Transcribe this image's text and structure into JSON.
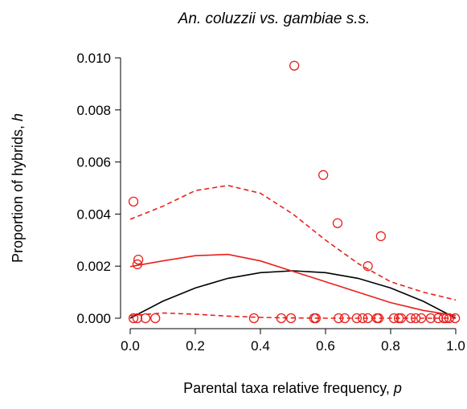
{
  "chart_data": {
    "type": "scatter",
    "title": "An. coluzzii vs. gambiae s.s.",
    "x_label": {
      "text": "Parental taxa relative frequency, ",
      "var": "p"
    },
    "y_label": {
      "text": "Proportion of hybrids, ",
      "var": "h"
    },
    "xlim": [
      0,
      1
    ],
    "ylim": [
      0,
      0.01
    ],
    "xticks": [
      {
        "value": 0,
        "label": "0.0"
      },
      {
        "value": 0.2,
        "label": "0.2"
      },
      {
        "value": 0.4,
        "label": "0.4"
      },
      {
        "value": 0.6,
        "label": "0.6"
      },
      {
        "value": 0.8,
        "label": "0.8"
      },
      {
        "value": 1,
        "label": "1.0"
      }
    ],
    "yticks": [
      {
        "value": 0,
        "label": "0.000"
      },
      {
        "value": 0.002,
        "label": "0.002"
      },
      {
        "value": 0.004,
        "label": "0.004"
      },
      {
        "value": 0.006,
        "label": "0.006"
      },
      {
        "value": 0.008,
        "label": "0.008"
      },
      {
        "value": 0.01,
        "label": "0.010"
      }
    ],
    "points": {
      "color": "#e8201c",
      "x": [
        0.01,
        0.022,
        0.025,
        0.504,
        0.593,
        0.637,
        0.77,
        0.73,
        0.01,
        0.022,
        0.047,
        0.077,
        0.38,
        0.464,
        0.494,
        0.565,
        0.57,
        0.64,
        0.659,
        0.696,
        0.714,
        0.73,
        0.758,
        0.763,
        0.81,
        0.825,
        0.832,
        0.862,
        0.877,
        0.894,
        0.923,
        0.946,
        0.963,
        0.971,
        0.98,
        0.998
      ],
      "y": [
        0.00448,
        0.00207,
        0.00225,
        0.0097,
        0.0055,
        0.00365,
        0.00315,
        0.002,
        0,
        0,
        0,
        0,
        0,
        0,
        0,
        0,
        0,
        0,
        0,
        0,
        0,
        0,
        0,
        0,
        0,
        0,
        0,
        0,
        0,
        0,
        0,
        0,
        0,
        0,
        0,
        0
      ]
    },
    "lines": [
      {
        "color": "#000000",
        "dash": false,
        "x": [
          0,
          0.1,
          0.2,
          0.3,
          0.4,
          0.5,
          0.6,
          0.7,
          0.8,
          0.9,
          1
        ],
        "y": [
          0,
          0.00065,
          0.00116,
          0.00153,
          0.00175,
          0.00182,
          0.00175,
          0.00153,
          0.00116,
          0.00065,
          0
        ]
      },
      {
        "color": "#e8201c",
        "dash": false,
        "x": [
          0,
          0.1,
          0.2,
          0.3,
          0.4,
          0.5,
          0.6,
          0.7,
          0.8,
          0.9,
          1
        ],
        "y": [
          0.00198,
          0.0022,
          0.0024,
          0.00245,
          0.0022,
          0.0018,
          0.0014,
          0.001,
          0.0006,
          0.0003,
          0.0001
        ]
      },
      {
        "color": "#e8201c",
        "dash": true,
        "x": [
          0,
          0.1,
          0.2,
          0.3,
          0.4,
          0.5,
          0.6,
          0.7,
          0.8,
          0.9,
          1
        ],
        "y": [
          0.0038,
          0.0043,
          0.0049,
          0.0051,
          0.0048,
          0.004,
          0.003,
          0.0021,
          0.0014,
          0.001,
          0.0007
        ]
      },
      {
        "color": "#e8201c",
        "dash": true,
        "x": [
          0,
          0.1,
          0.2,
          0.3,
          0.4,
          0.5,
          0.6,
          0.7,
          0.8,
          0.9,
          1
        ],
        "y": [
          0.0001,
          0.0002,
          0.00015,
          8e-05,
          3e-05,
          1e-05,
          0,
          0,
          0,
          0,
          0
        ]
      }
    ]
  }
}
